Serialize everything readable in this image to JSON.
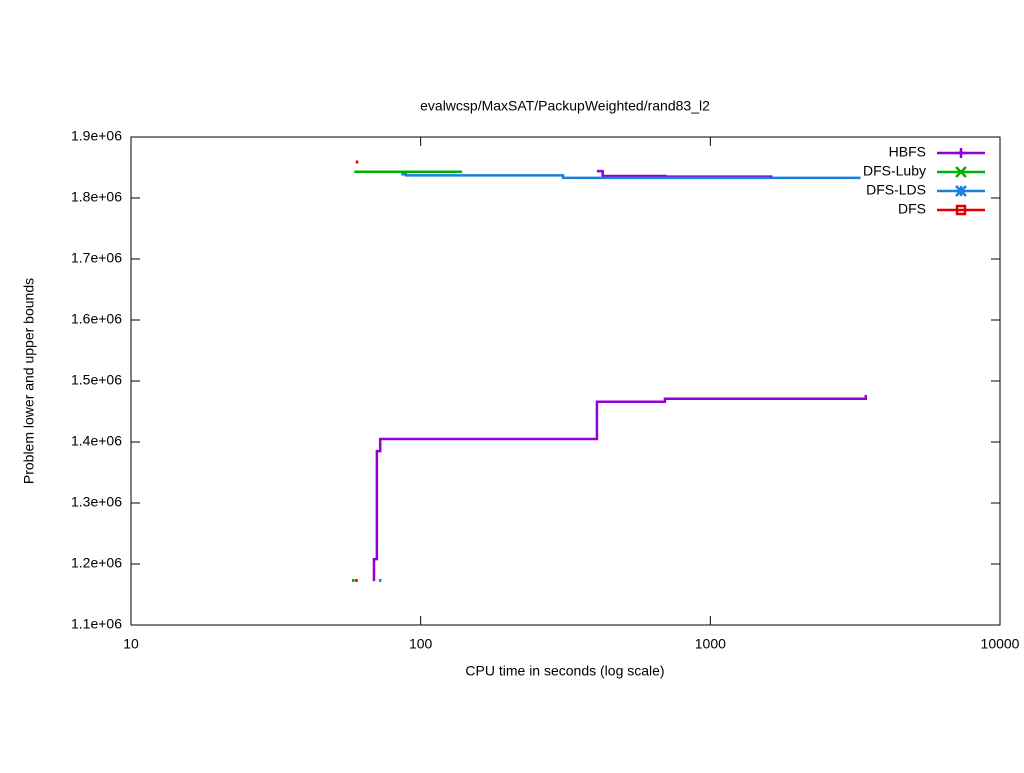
{
  "chart_data": {
    "type": "line",
    "title": "evalwcsp/MaxSAT/PackupWeighted/rand83_l2",
    "x_label": "CPU time in seconds (log scale)",
    "y_label": "Problem lower and upper bounds",
    "x_log": true,
    "xlim": [
      10,
      10000
    ],
    "xticks": [
      10,
      100,
      1000,
      10000
    ],
    "ylim": [
      1100000,
      1900000
    ],
    "yticks": [
      {
        "value": 1100000,
        "label": "1.1e+06"
      },
      {
        "value": 1200000,
        "label": "1.2e+06"
      },
      {
        "value": 1300000,
        "label": "1.3e+06"
      },
      {
        "value": 1400000,
        "label": "1.4e+06"
      },
      {
        "value": 1500000,
        "label": "1.5e+06"
      },
      {
        "value": 1600000,
        "label": "1.6e+06"
      },
      {
        "value": 1700000,
        "label": "1.7e+06"
      },
      {
        "value": 1800000,
        "label": "1.8e+06"
      },
      {
        "value": 1900000,
        "label": "1.9e+06"
      }
    ],
    "legend": "top right",
    "series": [
      {
        "name": "HBFS",
        "color": "#9400d3",
        "x": [
          406,
          425,
          425,
          700,
          700,
          1640,
          null,
          69,
          69,
          70.6,
          70.6,
          72.5,
          72.5,
          406,
          406,
          697,
          697,
          3440,
          3440
        ],
        "values": [
          1844000,
          1844000,
          1836000,
          1836000,
          1835000,
          1835000,
          null,
          1172000,
          1208000,
          1208000,
          1385000,
          1385000,
          1405000,
          1405000,
          1466000,
          1466000,
          1471000,
          1471000,
          1477000
        ]
      },
      {
        "name": "DFS-Luby",
        "color": "#00b000",
        "x": [
          59,
          139,
          null,
          58.5
        ],
        "values": [
          1843000,
          1843000,
          null,
          1173000
        ]
      },
      {
        "name": "DFS-LDS",
        "color": "#1a80e0",
        "x": [
          85.6,
          89,
          89,
          310,
          310,
          3300,
          null,
          72.5
        ],
        "values": [
          1839000,
          1839000,
          1837000,
          1837000,
          1833000,
          1833000,
          null,
          1173000
        ]
      },
      {
        "name": "DFS",
        "color": "#e00000",
        "x": [
          60.3,
          null,
          60
        ],
        "values": [
          1859000,
          null,
          1173000
        ]
      }
    ]
  }
}
